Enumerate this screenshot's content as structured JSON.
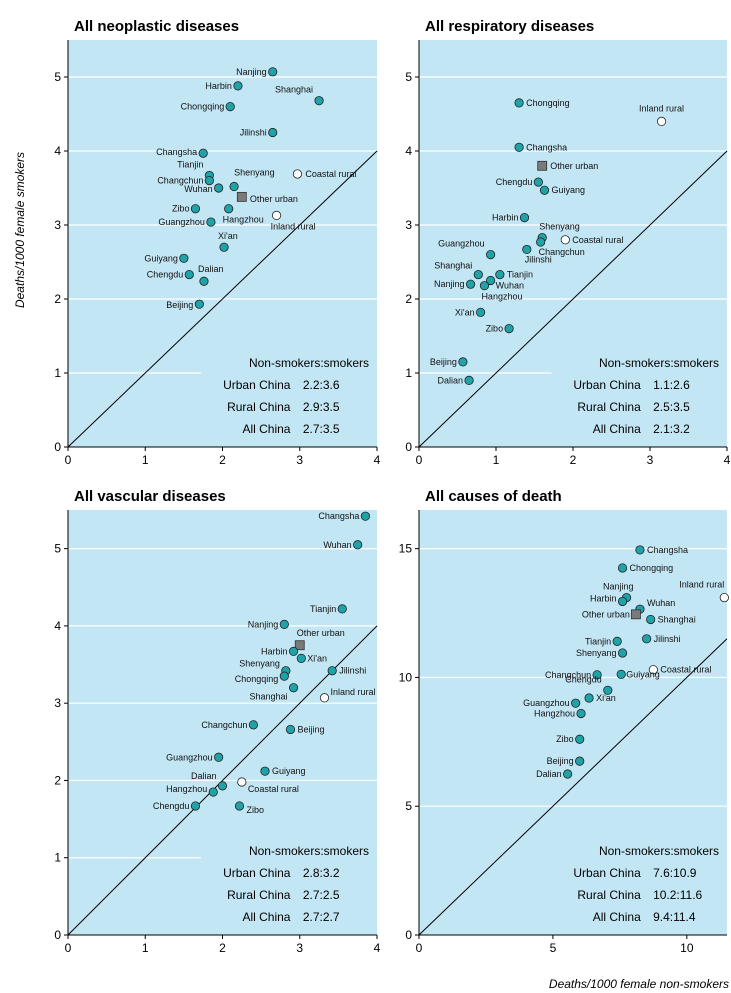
{
  "figure": {
    "ylabel": "Deaths/1000 female smokers",
    "xlabel": "Deaths/1000 female non-smokers",
    "background": "#c3e6f5",
    "city_color": "#1fa3a8",
    "rural_color": "#ffffff",
    "urban_color": "#7a7a7a"
  },
  "chart_data": [
    {
      "type": "scatter",
      "title": "All neoplastic diseases",
      "xlim": [
        0,
        4
      ],
      "ylim": [
        0,
        5.5
      ],
      "xticks": [
        0,
        1,
        2,
        3,
        4
      ],
      "yticks": [
        0,
        1,
        2,
        3,
        4,
        5
      ],
      "diagonal": true,
      "points": [
        {
          "label": "Nanjing",
          "x": 2.65,
          "y": 5.07,
          "kind": "city"
        },
        {
          "label": "Harbin",
          "x": 2.2,
          "y": 4.88,
          "kind": "city"
        },
        {
          "label": "Shanghai",
          "x": 3.25,
          "y": 4.68,
          "kind": "city"
        },
        {
          "label": "Chongqing",
          "x": 2.1,
          "y": 4.6,
          "kind": "city"
        },
        {
          "label": "Jilinshi",
          "x": 2.65,
          "y": 4.25,
          "kind": "city"
        },
        {
          "label": "Changsha",
          "x": 1.75,
          "y": 3.97,
          "kind": "city"
        },
        {
          "label": "Tianjin",
          "x": 1.83,
          "y": 3.67,
          "kind": "city"
        },
        {
          "label": "Coastal rural",
          "x": 2.97,
          "y": 3.69,
          "kind": "rural"
        },
        {
          "label": "Changchun",
          "x": 1.83,
          "y": 3.6,
          "kind": "city"
        },
        {
          "label": "Shenyang",
          "x": 2.15,
          "y": 3.52,
          "kind": "city"
        },
        {
          "label": "Wuhan",
          "x": 1.95,
          "y": 3.5,
          "kind": "city"
        },
        {
          "label": "Other urban",
          "x": 2.25,
          "y": 3.38,
          "kind": "urban"
        },
        {
          "label": "Zibo",
          "x": 1.65,
          "y": 3.22,
          "kind": "city"
        },
        {
          "label": "Hangzhou",
          "x": 2.08,
          "y": 3.22,
          "kind": "city"
        },
        {
          "label": "Inland rural",
          "x": 2.7,
          "y": 3.13,
          "kind": "rural"
        },
        {
          "label": "Guangzhou",
          "x": 1.85,
          "y": 3.04,
          "kind": "city"
        },
        {
          "label": "Xi'an",
          "x": 2.02,
          "y": 2.7,
          "kind": "city"
        },
        {
          "label": "Guiyang",
          "x": 1.5,
          "y": 2.55,
          "kind": "city"
        },
        {
          "label": "Chengdu",
          "x": 1.57,
          "y": 2.33,
          "kind": "city"
        },
        {
          "label": "Dalian",
          "x": 1.76,
          "y": 2.24,
          "kind": "city"
        },
        {
          "label": "Beijing",
          "x": 1.7,
          "y": 1.93,
          "kind": "city"
        }
      ],
      "stats": {
        "header": "Non-smokers:smokers",
        "rows": [
          {
            "label": "Urban China",
            "value": "2.2:3.6"
          },
          {
            "label": "Rural China",
            "value": "2.9:3.5"
          },
          {
            "label": "All China",
            "value": "2.7:3.5"
          }
        ]
      }
    },
    {
      "type": "scatter",
      "title": "All respiratory diseases",
      "xlim": [
        0,
        4
      ],
      "ylim": [
        0,
        5.5
      ],
      "xticks": [
        0,
        1,
        2,
        3,
        4
      ],
      "yticks": [
        0,
        1,
        2,
        3,
        4,
        5
      ],
      "diagonal": true,
      "points": [
        {
          "label": "Chongqing",
          "x": 1.3,
          "y": 4.65,
          "kind": "city"
        },
        {
          "label": "Inland rural",
          "x": 3.15,
          "y": 4.4,
          "kind": "rural"
        },
        {
          "label": "Changsha",
          "x": 1.3,
          "y": 4.05,
          "kind": "city"
        },
        {
          "label": "Other urban",
          "x": 1.6,
          "y": 3.8,
          "kind": "urban"
        },
        {
          "label": "Chengdu",
          "x": 1.55,
          "y": 3.58,
          "kind": "city"
        },
        {
          "label": "Guiyang",
          "x": 1.63,
          "y": 3.47,
          "kind": "city"
        },
        {
          "label": "Harbin",
          "x": 1.37,
          "y": 3.1,
          "kind": "city"
        },
        {
          "label": "Shenyang",
          "x": 1.6,
          "y": 2.83,
          "kind": "city"
        },
        {
          "label": "Coastal rural",
          "x": 1.9,
          "y": 2.8,
          "kind": "rural"
        },
        {
          "label": "Changchun",
          "x": 1.58,
          "y": 2.77,
          "kind": "city"
        },
        {
          "label": "Jilinshi",
          "x": 1.4,
          "y": 2.67,
          "kind": "city"
        },
        {
          "label": "Guangzhou",
          "x": 0.93,
          "y": 2.6,
          "kind": "city"
        },
        {
          "label": "Shanghai",
          "x": 0.77,
          "y": 2.33,
          "kind": "city"
        },
        {
          "label": "Tianjin",
          "x": 1.05,
          "y": 2.33,
          "kind": "city"
        },
        {
          "label": "Wuhan",
          "x": 0.93,
          "y": 2.25,
          "kind": "city"
        },
        {
          "label": "Nanjing",
          "x": 0.67,
          "y": 2.2,
          "kind": "city"
        },
        {
          "label": "Hangzhou",
          "x": 0.85,
          "y": 2.18,
          "kind": "city"
        },
        {
          "label": "Xi'an",
          "x": 0.8,
          "y": 1.82,
          "kind": "city"
        },
        {
          "label": "Zibo",
          "x": 1.17,
          "y": 1.6,
          "kind": "city"
        },
        {
          "label": "Beijing",
          "x": 0.57,
          "y": 1.15,
          "kind": "city"
        },
        {
          "label": "Dalian",
          "x": 0.65,
          "y": 0.9,
          "kind": "city"
        }
      ],
      "stats": {
        "header": "Non-smokers:smokers",
        "rows": [
          {
            "label": "Urban China",
            "value": "1.1:2.6"
          },
          {
            "label": "Rural China",
            "value": "2.5:3.5"
          },
          {
            "label": "All China",
            "value": "2.1:3.2"
          }
        ]
      }
    },
    {
      "type": "scatter",
      "title": "All vascular diseases",
      "xlim": [
        0,
        4
      ],
      "ylim": [
        0,
        5.5
      ],
      "xticks": [
        0,
        1,
        2,
        3,
        4
      ],
      "yticks": [
        0,
        1,
        2,
        3,
        4,
        5
      ],
      "diagonal": true,
      "points": [
        {
          "label": "Changsha",
          "x": 3.85,
          "y": 5.42,
          "kind": "city"
        },
        {
          "label": "Wuhan",
          "x": 3.75,
          "y": 5.05,
          "kind": "city"
        },
        {
          "label": "Tianjin",
          "x": 3.55,
          "y": 4.22,
          "kind": "city"
        },
        {
          "label": "Nanjing",
          "x": 2.8,
          "y": 4.02,
          "kind": "city"
        },
        {
          "label": "Other urban",
          "x": 3.0,
          "y": 3.75,
          "kind": "urban"
        },
        {
          "label": "Harbin",
          "x": 2.92,
          "y": 3.67,
          "kind": "city"
        },
        {
          "label": "Xi'an",
          "x": 3.02,
          "y": 3.58,
          "kind": "city"
        },
        {
          "label": "Shenyang",
          "x": 2.82,
          "y": 3.42,
          "kind": "city"
        },
        {
          "label": "Jilinshi",
          "x": 3.42,
          "y": 3.42,
          "kind": "city"
        },
        {
          "label": "Chongqing",
          "x": 2.8,
          "y": 3.35,
          "kind": "city"
        },
        {
          "label": "Shanghai",
          "x": 2.92,
          "y": 3.2,
          "kind": "city"
        },
        {
          "label": "Inland rural",
          "x": 3.32,
          "y": 3.07,
          "kind": "rural"
        },
        {
          "label": "Changchun",
          "x": 2.4,
          "y": 2.72,
          "kind": "city"
        },
        {
          "label": "Beijing",
          "x": 2.88,
          "y": 2.66,
          "kind": "city"
        },
        {
          "label": "Guangzhou",
          "x": 1.95,
          "y": 2.3,
          "kind": "city"
        },
        {
          "label": "Guiyang",
          "x": 2.55,
          "y": 2.12,
          "kind": "city"
        },
        {
          "label": "Dalian",
          "x": 2.0,
          "y": 1.93,
          "kind": "city"
        },
        {
          "label": "Coastal rural",
          "x": 2.25,
          "y": 1.98,
          "kind": "rural"
        },
        {
          "label": "Hangzhou",
          "x": 1.88,
          "y": 1.85,
          "kind": "city"
        },
        {
          "label": "Chengdu",
          "x": 1.65,
          "y": 1.67,
          "kind": "city"
        },
        {
          "label": "Zibo",
          "x": 2.22,
          "y": 1.67,
          "kind": "city"
        }
      ],
      "stats": {
        "header": "Non-smokers:smokers",
        "rows": [
          {
            "label": "Urban China",
            "value": "2.8:3.2"
          },
          {
            "label": "Rural China",
            "value": "2.7:2.5"
          },
          {
            "label": "All China",
            "value": "2.7:2.7"
          }
        ]
      }
    },
    {
      "type": "scatter",
      "title": "All causes of death",
      "xlim": [
        0,
        11.5
      ],
      "ylim": [
        0,
        16.5
      ],
      "xticks": [
        0,
        5,
        10
      ],
      "yticks": [
        0,
        5,
        10,
        15
      ],
      "diagonal": true,
      "points": [
        {
          "label": "Changsha",
          "x": 8.25,
          "y": 14.95,
          "kind": "city"
        },
        {
          "label": "Chongqing",
          "x": 7.6,
          "y": 14.25,
          "kind": "city"
        },
        {
          "label": "Nanjing",
          "x": 7.75,
          "y": 13.1,
          "kind": "city"
        },
        {
          "label": "Inland rural",
          "x": 11.4,
          "y": 13.1,
          "kind": "rural"
        },
        {
          "label": "Harbin",
          "x": 7.6,
          "y": 12.95,
          "kind": "city"
        },
        {
          "label": "Wuhan",
          "x": 8.25,
          "y": 12.65,
          "kind": "city"
        },
        {
          "label": "Other urban",
          "x": 8.1,
          "y": 12.45,
          "kind": "urban"
        },
        {
          "label": "Shanghai",
          "x": 8.65,
          "y": 12.25,
          "kind": "city"
        },
        {
          "label": "Tianjin",
          "x": 7.4,
          "y": 11.4,
          "kind": "city"
        },
        {
          "label": "Jilinshi",
          "x": 8.5,
          "y": 11.5,
          "kind": "city"
        },
        {
          "label": "Shenyang",
          "x": 7.6,
          "y": 10.95,
          "kind": "city"
        },
        {
          "label": "Coastal rural",
          "x": 8.75,
          "y": 10.3,
          "kind": "rural"
        },
        {
          "label": "Changchun",
          "x": 6.65,
          "y": 10.1,
          "kind": "city"
        },
        {
          "label": "Guiyang",
          "x": 7.55,
          "y": 10.12,
          "kind": "city"
        },
        {
          "label": "Chengdu",
          "x": 7.05,
          "y": 9.5,
          "kind": "city"
        },
        {
          "label": "Xi'an",
          "x": 6.35,
          "y": 9.2,
          "kind": "city"
        },
        {
          "label": "Guangzhou",
          "x": 5.85,
          "y": 9.0,
          "kind": "city"
        },
        {
          "label": "Hangzhou",
          "x": 6.05,
          "y": 8.6,
          "kind": "city"
        },
        {
          "label": "Zibo",
          "x": 6.0,
          "y": 7.6,
          "kind": "city"
        },
        {
          "label": "Beijing",
          "x": 6.0,
          "y": 6.75,
          "kind": "city"
        },
        {
          "label": "Dalian",
          "x": 5.55,
          "y": 6.25,
          "kind": "city"
        }
      ],
      "stats": {
        "header": "Non-smokers:smokers",
        "rows": [
          {
            "label": "Urban China",
            "value": "7.6:10.9"
          },
          {
            "label": "Rural China",
            "value": "10.2:11.6"
          },
          {
            "label": "All China",
            "value": "9.4:11.4"
          }
        ]
      }
    }
  ]
}
